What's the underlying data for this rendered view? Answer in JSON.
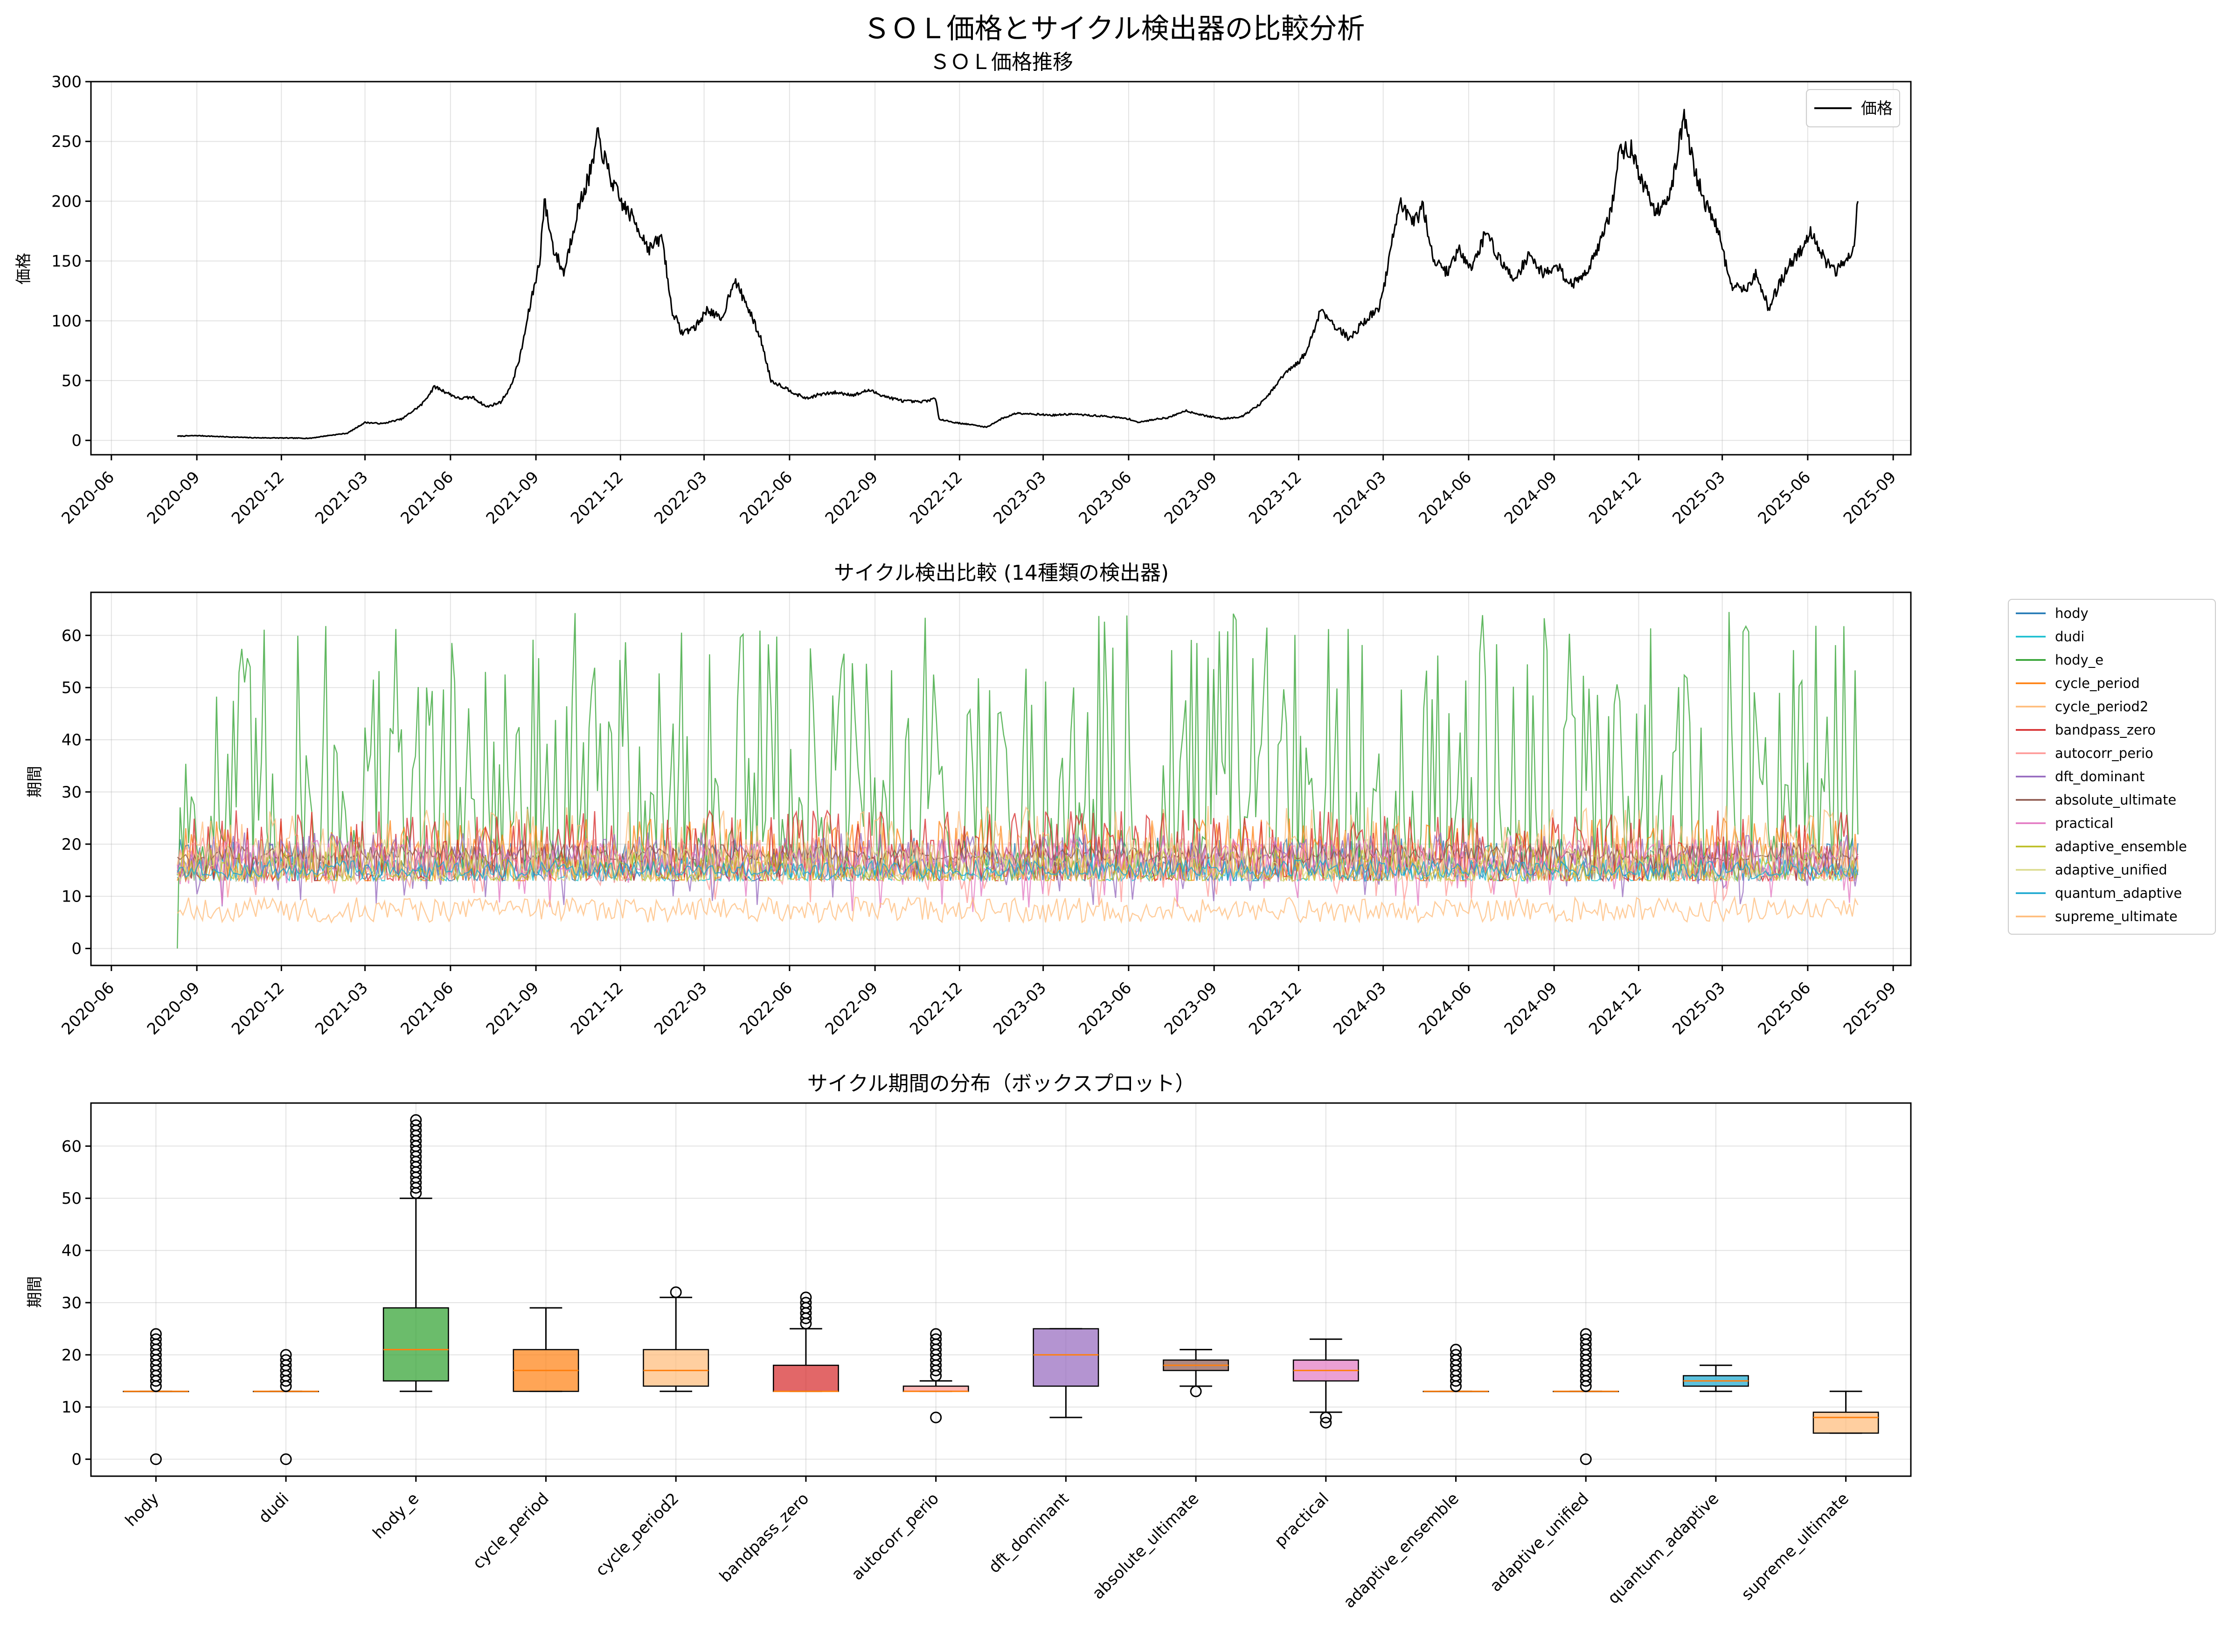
{
  "figure": {
    "suptitle": "ＳＯＬ価格とサイクル検出器の比較分析"
  },
  "chart_data": [
    {
      "type": "line",
      "title": "ＳＯＬ価格推移",
      "xlabel": "",
      "ylabel": "価格",
      "ylim": [
        -12,
        300
      ],
      "yticks": [
        0,
        50,
        100,
        150,
        200,
        250,
        300
      ],
      "xlim": [
        "2020-05-10",
        "2025-09-20"
      ],
      "xtick_labels": [
        "2020-06",
        "2020-09",
        "2020-12",
        "2021-03",
        "2021-06",
        "2021-09",
        "2021-12",
        "2022-03",
        "2022-06",
        "2022-09",
        "2022-12",
        "2023-03",
        "2023-06",
        "2023-09",
        "2023-12",
        "2024-03",
        "2024-06",
        "2024-09",
        "2024-12",
        "2025-03",
        "2025-06",
        "2025-09"
      ],
      "grid": true,
      "legend": "top-right",
      "series": [
        {
          "name": "価格",
          "color": "#000000",
          "x": [
            "2020-08-11",
            "2020-09-01",
            "2020-10-01",
            "2020-11-01",
            "2020-12-01",
            "2021-01-01",
            "2021-01-20",
            "2021-02-10",
            "2021-03-01",
            "2021-03-20",
            "2021-04-10",
            "2021-05-01",
            "2021-05-15",
            "2021-05-28",
            "2021-06-10",
            "2021-06-25",
            "2021-07-10",
            "2021-07-25",
            "2021-08-05",
            "2021-08-15",
            "2021-08-25",
            "2021-09-05",
            "2021-09-10",
            "2021-09-20",
            "2021-10-01",
            "2021-10-15",
            "2021-11-01",
            "2021-11-06",
            "2021-11-20",
            "2021-12-01",
            "2021-12-15",
            "2022-01-01",
            "2022-01-15",
            "2022-01-25",
            "2022-02-05",
            "2022-02-20",
            "2022-03-05",
            "2022-03-20",
            "2022-04-02",
            "2022-04-15",
            "2022-05-01",
            "2022-05-12",
            "2022-05-25",
            "2022-06-10",
            "2022-06-20",
            "2022-07-01",
            "2022-07-20",
            "2022-08-10",
            "2022-08-25",
            "2022-09-15",
            "2022-10-01",
            "2022-10-20",
            "2022-11-05",
            "2022-11-09",
            "2022-11-25",
            "2022-12-15",
            "2022-12-30",
            "2023-01-15",
            "2023-02-01",
            "2023-02-20",
            "2023-03-10",
            "2023-04-01",
            "2023-04-18",
            "2023-05-10",
            "2023-06-01",
            "2023-06-12",
            "2023-07-01",
            "2023-07-14",
            "2023-08-01",
            "2023-08-20",
            "2023-09-10",
            "2023-10-01",
            "2023-10-20",
            "2023-11-01",
            "2023-11-15",
            "2023-12-01",
            "2023-12-10",
            "2023-12-25",
            "2024-01-10",
            "2024-01-25",
            "2024-02-10",
            "2024-02-25",
            "2024-03-05",
            "2024-03-18",
            "2024-04-01",
            "2024-04-13",
            "2024-04-25",
            "2024-05-10",
            "2024-05-20",
            "2024-06-05",
            "2024-06-20",
            "2024-07-05",
            "2024-07-20",
            "2024-08-05",
            "2024-08-20",
            "2024-09-05",
            "2024-09-20",
            "2024-10-05",
            "2024-10-20",
            "2024-11-01",
            "2024-11-10",
            "2024-11-22",
            "2024-12-05",
            "2024-12-20",
            "2025-01-05",
            "2025-01-19",
            "2025-02-01",
            "2025-02-10",
            "2025-02-25",
            "2025-03-10",
            "2025-03-25",
            "2025-04-07",
            "2025-04-20",
            "2025-05-01",
            "2025-05-15",
            "2025-05-25",
            "2025-06-05",
            "2025-06-20",
            "2025-07-01",
            "2025-07-10",
            "2025-07-20",
            "2025-07-25"
          ],
          "y": [
            3.5,
            4,
            3,
            2.2,
            2,
            1.8,
            4,
            6,
            15,
            14,
            18,
            30,
            45,
            40,
            35,
            36,
            28,
            32,
            45,
            70,
            110,
            150,
            200,
            160,
            140,
            190,
            230,
            255,
            220,
            200,
            185,
            160,
            170,
            110,
            90,
            95,
            110,
            100,
            135,
            115,
            85,
            50,
            45,
            38,
            35,
            38,
            40,
            38,
            42,
            36,
            33,
            32,
            35,
            18,
            15,
            13,
            11,
            18,
            23,
            22,
            21,
            22,
            21,
            20,
            18,
            15,
            18,
            19,
            25,
            21,
            18,
            20,
            30,
            40,
            55,
            65,
            75,
            110,
            95,
            85,
            100,
            110,
            140,
            200,
            180,
            195,
            150,
            140,
            160,
            145,
            175,
            150,
            135,
            155,
            140,
            145,
            130,
            140,
            165,
            190,
            240,
            245,
            215,
            190,
            210,
            270,
            220,
            200,
            175,
            130,
            125,
            140,
            110,
            130,
            150,
            160,
            175,
            150,
            140,
            150,
            160,
            200
          ]
        }
      ]
    },
    {
      "type": "line",
      "title": "サイクル検出比較 (14種類の検出器)",
      "xlabel": "",
      "ylabel": "期間",
      "ylim": [
        -3.25,
        68.25
      ],
      "yticks": [
        0,
        10,
        20,
        30,
        40,
        50,
        60
      ],
      "xlim": [
        "2020-05-10",
        "2025-09-20"
      ],
      "xtick_labels": [
        "2020-06",
        "2020-09",
        "2020-12",
        "2021-03",
        "2021-06",
        "2021-09",
        "2021-12",
        "2022-03",
        "2022-06",
        "2022-09",
        "2022-12",
        "2023-03",
        "2023-06",
        "2023-09",
        "2023-12",
        "2024-03",
        "2024-06",
        "2024-09",
        "2024-12",
        "2025-03",
        "2025-06",
        "2025-09"
      ],
      "x_start": "2020-08-11",
      "x_end": "2025-07-25",
      "grid": true,
      "legend": "outside-right",
      "series": [
        {
          "name": "hody",
          "color": "#1f77b4",
          "base": 13,
          "low": 13,
          "high": 24
        },
        {
          "name": "dudi",
          "color": "#17becf",
          "base": 13,
          "low": 13,
          "high": 20
        },
        {
          "name": "hody_e",
          "color": "#2ca02c",
          "base": 15,
          "low": 13,
          "high": 65
        },
        {
          "name": "cycle_period",
          "color": "#ff7f0e",
          "base": 13,
          "low": 13,
          "high": 29
        },
        {
          "name": "cycle_period2",
          "color": "#ffbb78",
          "base": 14,
          "low": 13,
          "high": 32
        },
        {
          "name": "bandpass_zero",
          "color": "#d62728",
          "base": 13,
          "low": 13,
          "high": 31
        },
        {
          "name": "autocorr_perio",
          "color": "#ff9896",
          "base": 13,
          "low": 8,
          "high": 24
        },
        {
          "name": "dft_dominant",
          "color": "#9467bd",
          "base": 14,
          "low": 8,
          "high": 25
        },
        {
          "name": "absolute_ultimate",
          "color": "#8c564b",
          "base": 17,
          "low": 13,
          "high": 21
        },
        {
          "name": "practical",
          "color": "#e377c2",
          "base": 15,
          "low": 7,
          "high": 23
        },
        {
          "name": "adaptive_ensemble",
          "color": "#bcbd22",
          "base": 13,
          "low": 13,
          "high": 21
        },
        {
          "name": "adaptive_unified",
          "color": "#dbdb8d",
          "base": 13,
          "low": 13,
          "high": 24
        },
        {
          "name": "quantum_adaptive",
          "color": "#17a6cf",
          "base": 14,
          "low": 13,
          "high": 18
        },
        {
          "name": "supreme_ultimate",
          "color": "#ffbb78",
          "base": 8,
          "low": 5,
          "high": 13
        }
      ]
    },
    {
      "type": "box",
      "title": "サイクル期間の分布（ボックスプロット）",
      "xlabel": "",
      "ylabel": "期間",
      "ylim": [
        -3.25,
        68.25
      ],
      "yticks": [
        0,
        10,
        20,
        30,
        40,
        50,
        60
      ],
      "grid": true,
      "categories": [
        "hody",
        "dudi",
        "hody_e",
        "cycle_period",
        "cycle_period2",
        "bandpass_zero",
        "autocorr_perio",
        "dft_dominant",
        "absolute_ultimate",
        "practical",
        "adaptive_ensemble",
        "adaptive_unified",
        "quantum_adaptive",
        "supreme_ultimate"
      ],
      "boxes": [
        {
          "color": "#1f77b4",
          "whislo": 13,
          "q1": 13,
          "med": 13,
          "q3": 13,
          "whishi": 13,
          "fliers": [
            0,
            14,
            15,
            16,
            17,
            18,
            19,
            20,
            21,
            22,
            23,
            24
          ]
        },
        {
          "color": "#17becf",
          "whislo": 13,
          "q1": 13,
          "med": 13,
          "q3": 13,
          "whishi": 13,
          "fliers": [
            0,
            14,
            15,
            16,
            17,
            18,
            19,
            20
          ]
        },
        {
          "color": "#2ca02c",
          "whislo": 13,
          "q1": 15,
          "med": 21,
          "q3": 29,
          "whishi": 50,
          "fliers": [
            51,
            52,
            53,
            54,
            55,
            56,
            57,
            58,
            59,
            60,
            61,
            62,
            63,
            64,
            65
          ]
        },
        {
          "color": "#ff7f0e",
          "whislo": 13,
          "q1": 13,
          "med": 17,
          "q3": 21,
          "whishi": 29,
          "fliers": []
        },
        {
          "color": "#ffbb78",
          "whislo": 13,
          "q1": 14,
          "med": 17,
          "q3": 21,
          "whishi": 31,
          "fliers": [
            32
          ]
        },
        {
          "color": "#d62728",
          "whislo": 13,
          "q1": 13,
          "med": 13,
          "q3": 18,
          "whishi": 25,
          "fliers": [
            26,
            27,
            28,
            29,
            30,
            31
          ]
        },
        {
          "color": "#ff9896",
          "whislo": 13,
          "q1": 13,
          "med": 13,
          "q3": 14,
          "whishi": 15,
          "fliers": [
            8,
            16,
            17,
            18,
            19,
            20,
            21,
            22,
            23,
            24
          ]
        },
        {
          "color": "#9467bd",
          "whislo": 8,
          "q1": 14,
          "med": 20,
          "q3": 25,
          "whishi": 25,
          "fliers": []
        },
        {
          "color": "#8c564b",
          "whislo": 14,
          "q1": 17,
          "med": 18,
          "q3": 19,
          "whishi": 21,
          "fliers": [
            13
          ]
        },
        {
          "color": "#e377c2",
          "whislo": 9,
          "q1": 15,
          "med": 17,
          "q3": 19,
          "whishi": 23,
          "fliers": [
            7,
            8
          ]
        },
        {
          "color": "#bcbd22",
          "whislo": 13,
          "q1": 13,
          "med": 13,
          "q3": 13,
          "whishi": 13,
          "fliers": [
            14,
            15,
            16,
            17,
            18,
            19,
            20,
            21
          ]
        },
        {
          "color": "#dbdb8d",
          "whislo": 13,
          "q1": 13,
          "med": 13,
          "q3": 13,
          "whishi": 13,
          "fliers": [
            0,
            14,
            15,
            16,
            17,
            18,
            19,
            20,
            21,
            22,
            23,
            24
          ]
        },
        {
          "color": "#17a6cf",
          "whislo": 13,
          "q1": 14,
          "med": 15,
          "q3": 16,
          "whishi": 18,
          "fliers": []
        },
        {
          "color": "#ffbb78",
          "whislo": 5,
          "q1": 5,
          "med": 8,
          "q3": 9,
          "whishi": 13,
          "fliers": []
        }
      ]
    }
  ]
}
